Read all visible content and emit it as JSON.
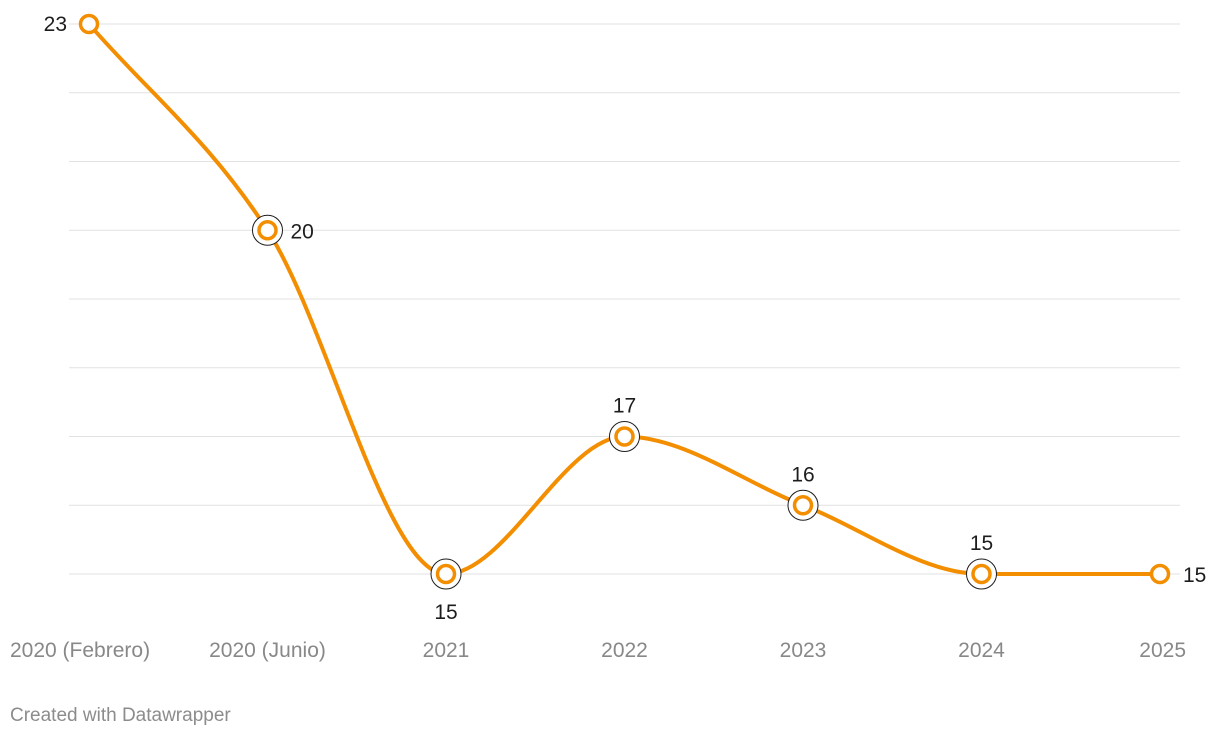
{
  "chart_data": {
    "type": "line",
    "categories": [
      "2020 (Febrero)",
      "2020 (Junio)",
      "2021",
      "2022",
      "2023",
      "2024",
      "2025"
    ],
    "series": [
      {
        "values": [
          23,
          20,
          15,
          17,
          16,
          15,
          15
        ]
      }
    ],
    "data_labels": [
      "23",
      "20",
      "15",
      "17",
      "16",
      "15",
      "15"
    ],
    "ylim": [
      15,
      23
    ],
    "y_gridlines": [
      15,
      16,
      17,
      18,
      19,
      20,
      21,
      22,
      23
    ],
    "grid": true,
    "line_color": "#f28e00",
    "highlight_ring_color": "#1d1d1d"
  },
  "footer": {
    "credit": "Created with Datawrapper"
  }
}
